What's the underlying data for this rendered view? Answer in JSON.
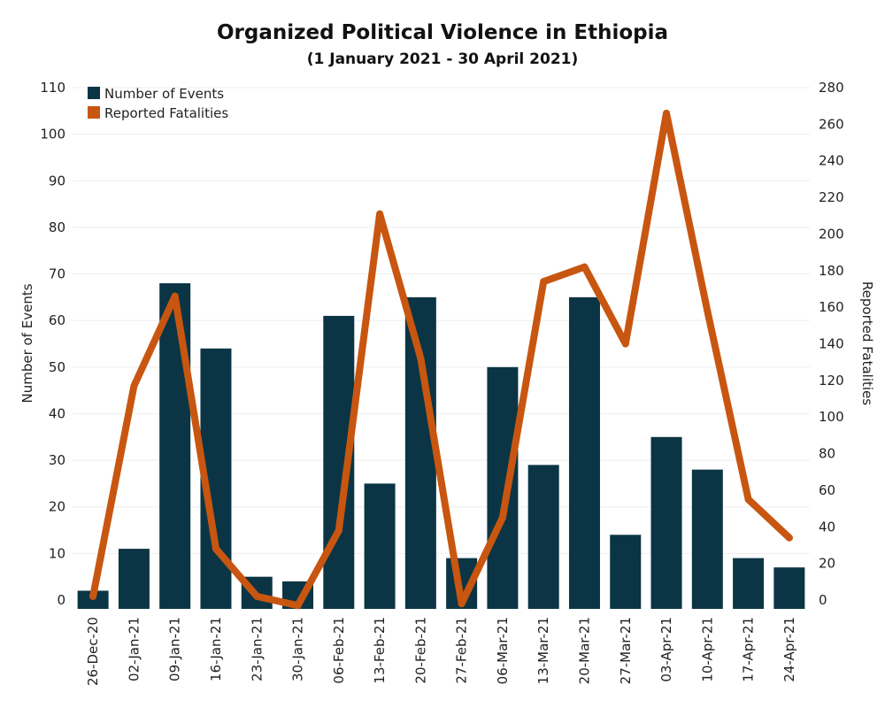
{
  "chart_data": {
    "type": "bar",
    "title": "Organized Political Violence in Ethiopia",
    "subtitle": "(1 January 2021 - 30 April 2021)",
    "categories": [
      "26-Dec-20",
      "02-Jan-21",
      "09-Jan-21",
      "16-Jan-21",
      "23-Jan-21",
      "30-Jan-21",
      "06-Feb-21",
      "13-Feb-21",
      "20-Feb-21",
      "27-Feb-21",
      "06-Mar-21",
      "13-Mar-21",
      "20-Mar-21",
      "27-Mar-21",
      "03-Apr-21",
      "10-Apr-21",
      "17-Apr-21",
      "24-Apr-21"
    ],
    "series": [
      {
        "name": "Number of Events",
        "type": "bar",
        "axis": "left",
        "color": "#0b3545",
        "values": [
          2,
          11,
          68,
          54,
          5,
          4,
          61,
          25,
          65,
          9,
          50,
          29,
          65,
          14,
          35,
          28,
          9,
          7
        ]
      },
      {
        "name": "Reported Fatalities",
        "type": "line",
        "axis": "right",
        "color": "#c85610",
        "values": [
          2,
          117,
          166,
          28,
          2,
          -3,
          38,
          211,
          132,
          -2,
          45,
          174,
          182,
          140,
          266,
          158,
          55,
          34
        ]
      }
    ],
    "ylabel": "Number of Events",
    "y2label": "Reported Fatalities",
    "ylim": [
      0,
      110
    ],
    "y2lim": [
      0,
      280
    ],
    "yticks": [
      0,
      10,
      20,
      30,
      40,
      50,
      60,
      70,
      80,
      90,
      100,
      110
    ],
    "y2ticks": [
      0,
      20,
      40,
      60,
      80,
      100,
      120,
      140,
      160,
      180,
      200,
      220,
      240,
      260,
      280
    ],
    "grid": true,
    "legend": "top-left"
  }
}
